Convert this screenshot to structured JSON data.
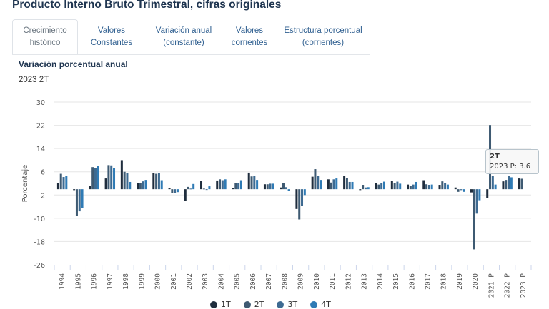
{
  "header": {
    "title": "Producto Interno Bruto Trimestral, cifras originales"
  },
  "tabs": [
    {
      "line1": "Crecimiento",
      "line2": "histórico",
      "active": true
    },
    {
      "line1": "Valores",
      "line2": "Constantes",
      "active": false
    },
    {
      "line1": "Variación anual",
      "line2": "(constante)",
      "active": false
    },
    {
      "line1": "Valores",
      "line2": "corrientes",
      "active": false
    },
    {
      "line1": "Estructura porcentual",
      "line2": "(corrientes)",
      "active": false
    }
  ],
  "section": {
    "title": "Variación porcentual anual",
    "period": "2023 2T"
  },
  "tooltip": {
    "series": "2T",
    "text": "2023 P: 3.6"
  },
  "chart_data": {
    "type": "bar",
    "title": "Variación porcentual anual",
    "subtitle": "2023 2T",
    "xlabel": "",
    "ylabel": "Porcentaje",
    "ylim": [
      -26,
      30
    ],
    "yticks": [
      30,
      22,
      14,
      6,
      -2,
      -10,
      -18,
      -26
    ],
    "grid": true,
    "legend_position": "bottom-center",
    "categories": [
      "1994",
      "1995",
      "1996",
      "1997",
      "1998",
      "1999",
      "2000",
      "2001",
      "2002",
      "2003",
      "2004",
      "2005",
      "2006",
      "2007",
      "2008",
      "2009",
      "2010",
      "2011",
      "2012",
      "2013",
      "2014",
      "2015",
      "2016",
      "2017",
      "2018",
      "2019",
      "2020",
      "2021 P",
      "2022 P",
      "2023 P"
    ],
    "series": [
      {
        "name": "1T",
        "color": "#1f2d3d",
        "values": [
          2.2,
          -0.3,
          1.2,
          3.7,
          10.0,
          2.0,
          5.6,
          0.4,
          -3.9,
          2.9,
          3.0,
          0.4,
          5.7,
          1.7,
          0.6,
          -6.8,
          4.3,
          3.4,
          4.7,
          -0.3,
          2.0,
          2.8,
          1.6,
          3.1,
          1.5,
          0.6,
          -1.1,
          -3.0,
          2.7,
          3.7
        ]
      },
      {
        "name": "2T",
        "color": "#3e5a72",
        "values": [
          5.3,
          -9.2,
          7.6,
          8.3,
          6.0,
          2.0,
          5.3,
          -1.4,
          0.8,
          0.2,
          3.4,
          2.0,
          4.4,
          1.7,
          2.0,
          -10.4,
          6.9,
          2.3,
          3.9,
          1.5,
          1.6,
          2.1,
          1.1,
          1.7,
          2.7,
          -0.9,
          -20.7,
          22.1,
          3.2,
          3.6
        ]
      },
      {
        "name": "3T",
        "color": "#3d6a91",
        "values": [
          4.2,
          -7.6,
          7.3,
          8.2,
          5.6,
          2.7,
          5.5,
          -1.4,
          0.2,
          0.0,
          3.1,
          2.0,
          4.7,
          1.9,
          0.7,
          -5.8,
          4.5,
          3.4,
          2.5,
          0.6,
          2.2,
          2.6,
          1.6,
          1.5,
          2.2,
          -0.3,
          -8.4,
          4.5,
          4.6,
          null
        ]
      },
      {
        "name": "4T",
        "color": "#2f7bb5",
        "values": [
          4.7,
          -6.4,
          7.9,
          7.3,
          2.5,
          3.2,
          3.1,
          -1.0,
          1.8,
          1.0,
          3.4,
          3.1,
          3.2,
          1.9,
          -0.7,
          -2.0,
          3.2,
          3.7,
          2.5,
          0.7,
          2.6,
          1.9,
          2.5,
          1.6,
          1.6,
          -0.9,
          -3.8,
          1.6,
          4.1,
          null
        ]
      }
    ]
  }
}
